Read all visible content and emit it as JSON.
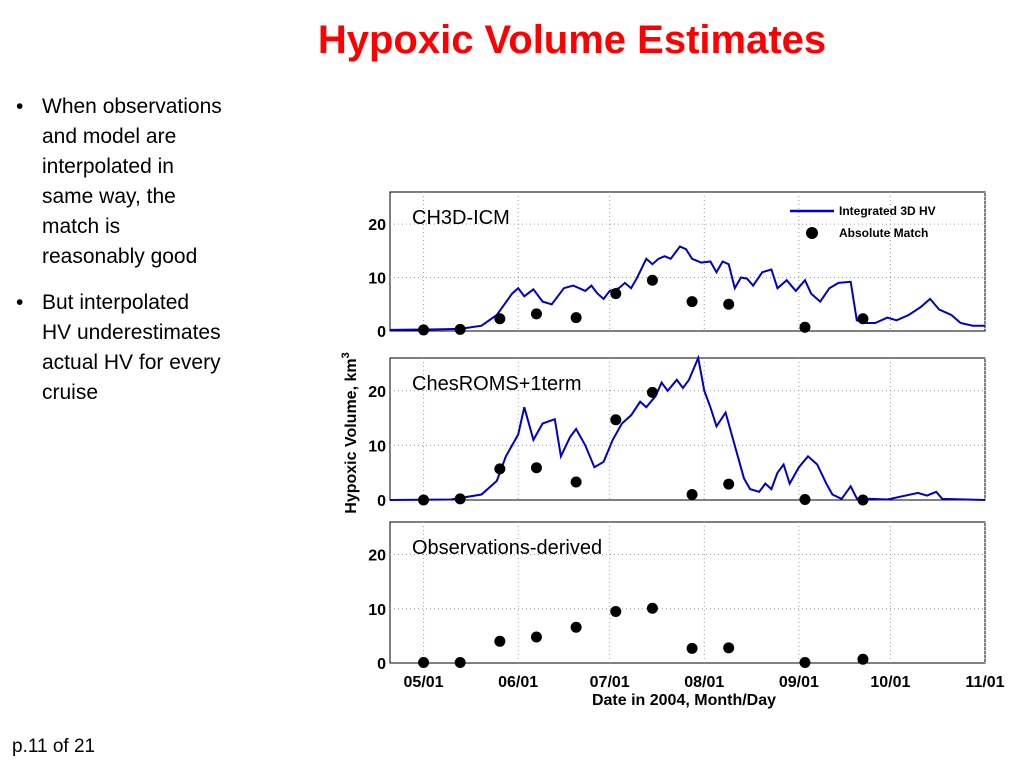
{
  "slide": {
    "title": "Hypoxic Volume Estimates",
    "bullet_symbol": "•",
    "bullets": [
      "When observations\nand model are\ninterpolated in\nsame way, the\nmatch is\nreasonably good",
      "But interpolated\nHV underestimates\nactual HV for every\ncruise"
    ],
    "page_number": "p.11 of 21"
  },
  "colors": {
    "title": "#ff0000",
    "line": "#0000cc",
    "marker": "#000000"
  },
  "chart_data": {
    "type": "line",
    "x_unit": "date (2004)",
    "xlim": [
      "2004-04-20",
      "2004-11-01"
    ],
    "x_ticks": [
      "2004-05-01",
      "2004-06-01",
      "2004-07-01",
      "2004-08-01",
      "2004-09-01",
      "2004-10-01",
      "2004-11-01"
    ],
    "x_tick_labels": [
      "05/01",
      "06/01",
      "07/01",
      "08/01",
      "09/01",
      "10/01",
      "11/01"
    ],
    "xlabel": "Date in 2004, Month/Day",
    "ylabel": "Hypoxic Volume, km",
    "ylabel_superscript": "3",
    "grid": true,
    "legend": {
      "placement": "top-right",
      "entries": [
        "Integrated 3D HV",
        "Absolute Match"
      ]
    },
    "panels": [
      {
        "label": "CH3D-ICM",
        "ylim": [
          0,
          26
        ],
        "y_ticks": [
          0,
          10,
          20
        ],
        "y_tick_labels": [
          "0",
          "10",
          "20"
        ],
        "show_legend": true,
        "series": [
          {
            "name": "Integrated 3D HV",
            "style": "line",
            "points": [
              [
                "2004-04-20",
                0.2
              ],
              [
                "2004-05-05",
                0.3
              ],
              [
                "2004-05-13",
                0.4
              ],
              [
                "2004-05-20",
                1
              ],
              [
                "2004-05-25",
                3
              ],
              [
                "2004-05-30",
                7
              ],
              [
                "2004-06-01",
                8
              ],
              [
                "2004-06-03",
                6.5
              ],
              [
                "2004-06-06",
                7.8
              ],
              [
                "2004-06-09",
                5.5
              ],
              [
                "2004-06-12",
                5
              ],
              [
                "2004-06-16",
                8
              ],
              [
                "2004-06-19",
                8.5
              ],
              [
                "2004-06-21",
                8
              ],
              [
                "2004-06-23",
                7.5
              ],
              [
                "2004-06-25",
                8.5
              ],
              [
                "2004-06-27",
                7
              ],
              [
                "2004-06-29",
                6
              ],
              [
                "2004-07-01",
                7.5
              ],
              [
                "2004-07-04",
                8
              ],
              [
                "2004-07-06",
                9
              ],
              [
                "2004-07-08",
                8
              ],
              [
                "2004-07-10",
                10
              ],
              [
                "2004-07-13",
                13.5
              ],
              [
                "2004-07-15",
                12.5
              ],
              [
                "2004-07-17",
                13.5
              ],
              [
                "2004-07-19",
                14
              ],
              [
                "2004-07-21",
                13.5
              ],
              [
                "2004-07-24",
                15.8
              ],
              [
                "2004-07-26",
                15.3
              ],
              [
                "2004-07-28",
                13.5
              ],
              [
                "2004-07-31",
                12.8
              ],
              [
                "2004-08-03",
                13
              ],
              [
                "2004-08-05",
                11
              ],
              [
                "2004-08-07",
                13
              ],
              [
                "2004-08-09",
                12.5
              ],
              [
                "2004-08-11",
                8
              ],
              [
                "2004-08-13",
                10
              ],
              [
                "2004-08-15",
                9.8
              ],
              [
                "2004-08-17",
                8.5
              ],
              [
                "2004-08-20",
                11
              ],
              [
                "2004-08-23",
                11.5
              ],
              [
                "2004-08-25",
                8
              ],
              [
                "2004-08-28",
                9.5
              ],
              [
                "2004-08-31",
                7.5
              ],
              [
                "2004-09-03",
                9.5
              ],
              [
                "2004-09-05",
                7
              ],
              [
                "2004-09-08",
                5.5
              ],
              [
                "2004-09-11",
                8
              ],
              [
                "2004-09-14",
                9
              ],
              [
                "2004-09-18",
                9.2
              ],
              [
                "2004-09-20",
                2
              ],
              [
                "2004-09-23",
                1.5
              ],
              [
                "2004-09-26",
                1.5
              ],
              [
                "2004-09-30",
                2.5
              ],
              [
                "2004-10-03",
                2
              ],
              [
                "2004-10-07",
                3
              ],
              [
                "2004-10-11",
                4.5
              ],
              [
                "2004-10-14",
                6
              ],
              [
                "2004-10-17",
                4
              ],
              [
                "2004-10-21",
                3
              ],
              [
                "2004-10-24",
                1.5
              ],
              [
                "2004-10-28",
                1
              ],
              [
                "2004-11-01",
                1
              ]
            ]
          },
          {
            "name": "Absolute Match",
            "style": "markers",
            "points": [
              [
                "2004-05-01",
                0.2
              ],
              [
                "2004-05-13",
                0.3
              ],
              [
                "2004-05-26",
                2.3
              ],
              [
                "2004-06-07",
                3.2
              ],
              [
                "2004-06-20",
                2.5
              ],
              [
                "2004-07-03",
                7
              ],
              [
                "2004-07-15",
                9.5
              ],
              [
                "2004-07-28",
                5.5
              ],
              [
                "2004-08-09",
                5
              ],
              [
                "2004-09-03",
                0.7
              ],
              [
                "2004-09-22",
                2.3
              ]
            ]
          }
        ]
      },
      {
        "label": "ChesROMS+1term",
        "ylim": [
          0,
          26
        ],
        "y_ticks": [
          0,
          10,
          20
        ],
        "y_tick_labels": [
          "0",
          "10",
          "20"
        ],
        "show_legend": false,
        "series": [
          {
            "name": "Integrated 3D HV",
            "style": "line",
            "points": [
              [
                "2004-04-20",
                0
              ],
              [
                "2004-05-10",
                0.1
              ],
              [
                "2004-05-20",
                1
              ],
              [
                "2004-05-25",
                3.5
              ],
              [
                "2004-05-28",
                8
              ],
              [
                "2004-06-01",
                12
              ],
              [
                "2004-06-03",
                17
              ],
              [
                "2004-06-06",
                11
              ],
              [
                "2004-06-09",
                14
              ],
              [
                "2004-06-13",
                14.8
              ],
              [
                "2004-06-15",
                8
              ],
              [
                "2004-06-18",
                11.5
              ],
              [
                "2004-06-20",
                13
              ],
              [
                "2004-06-23",
                10
              ],
              [
                "2004-06-26",
                6
              ],
              [
                "2004-06-29",
                7
              ],
              [
                "2004-07-02",
                11
              ],
              [
                "2004-07-05",
                14
              ],
              [
                "2004-07-08",
                15.5
              ],
              [
                "2004-07-11",
                18
              ],
              [
                "2004-07-13",
                17
              ],
              [
                "2004-07-16",
                19
              ],
              [
                "2004-07-18",
                21.5
              ],
              [
                "2004-07-20",
                20
              ],
              [
                "2004-07-23",
                22
              ],
              [
                "2004-07-25",
                20.5
              ],
              [
                "2004-07-27",
                22
              ],
              [
                "2004-07-30",
                26
              ],
              [
                "2004-08-01",
                20
              ],
              [
                "2004-08-03",
                17
              ],
              [
                "2004-08-05",
                13.5
              ],
              [
                "2004-08-08",
                16
              ],
              [
                "2004-08-10",
                12
              ],
              [
                "2004-08-12",
                8
              ],
              [
                "2004-08-14",
                4
              ],
              [
                "2004-08-16",
                2
              ],
              [
                "2004-08-19",
                1.5
              ],
              [
                "2004-08-21",
                3
              ],
              [
                "2004-08-23",
                2
              ],
              [
                "2004-08-25",
                5
              ],
              [
                "2004-08-27",
                6.5
              ],
              [
                "2004-08-29",
                3
              ],
              [
                "2004-09-01",
                6
              ],
              [
                "2004-09-04",
                8
              ],
              [
                "2004-09-07",
                6.5
              ],
              [
                "2004-09-10",
                3
              ],
              [
                "2004-09-12",
                1
              ],
              [
                "2004-09-15",
                0.2
              ],
              [
                "2004-09-18",
                2.5
              ],
              [
                "2004-09-20",
                0.3
              ],
              [
                "2004-09-30",
                0.1
              ],
              [
                "2004-10-10",
                1.3
              ],
              [
                "2004-10-13",
                0.8
              ],
              [
                "2004-10-16",
                1.5
              ],
              [
                "2004-10-18",
                0.2
              ],
              [
                "2004-11-01",
                0
              ]
            ]
          },
          {
            "name": "Absolute Match",
            "style": "markers",
            "points": [
              [
                "2004-05-01",
                0
              ],
              [
                "2004-05-13",
                0.2
              ],
              [
                "2004-05-26",
                5.7
              ],
              [
                "2004-06-07",
                5.9
              ],
              [
                "2004-06-20",
                3.3
              ],
              [
                "2004-07-03",
                14.7
              ],
              [
                "2004-07-15",
                19.7
              ],
              [
                "2004-07-28",
                1
              ],
              [
                "2004-08-09",
                2.9
              ],
              [
                "2004-09-03",
                0.1
              ],
              [
                "2004-09-22",
                0
              ]
            ]
          }
        ]
      },
      {
        "label": "Observations-derived",
        "ylim": [
          0,
          26
        ],
        "y_ticks": [
          0,
          10,
          20
        ],
        "y_tick_labels": [
          "0",
          "10",
          "20"
        ],
        "show_legend": false,
        "series": [
          {
            "name": "Absolute Match",
            "style": "markers",
            "points": [
              [
                "2004-05-01",
                0.1
              ],
              [
                "2004-05-13",
                0.1
              ],
              [
                "2004-05-26",
                4
              ],
              [
                "2004-06-07",
                4.8
              ],
              [
                "2004-06-20",
                6.6
              ],
              [
                "2004-07-03",
                9.5
              ],
              [
                "2004-07-15",
                10.1
              ],
              [
                "2004-07-28",
                2.7
              ],
              [
                "2004-08-09",
                2.8
              ],
              [
                "2004-09-03",
                0.1
              ],
              [
                "2004-09-22",
                0.7
              ]
            ]
          }
        ]
      }
    ]
  }
}
